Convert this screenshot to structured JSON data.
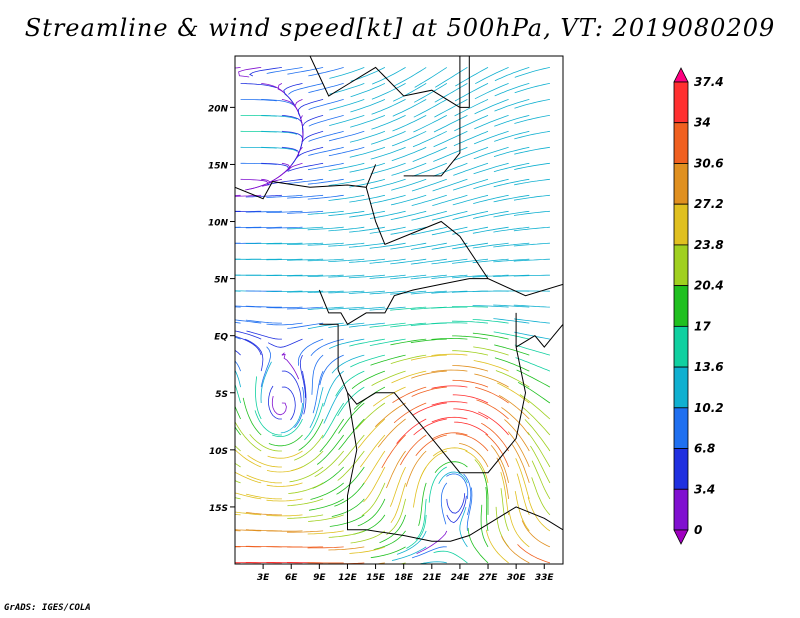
{
  "title": "Streamline & wind speed[kt] at 500hPa, VT: 2019080209",
  "credit": "GrADS: IGES/COLA",
  "map": {
    "lat_labels": [
      "20N",
      "15N",
      "10N",
      "5N",
      "EQ",
      "5S",
      "10S",
      "15S"
    ],
    "lat_values": [
      20,
      15,
      10,
      5,
      0,
      -5,
      -10,
      -15
    ],
    "lon_labels": [
      "3E",
      "6E",
      "9E",
      "12E",
      "15E",
      "18E",
      "21E",
      "24E",
      "27E",
      "30E",
      "33E"
    ],
    "lon_values": [
      3,
      6,
      9,
      12,
      15,
      18,
      21,
      24,
      27,
      30,
      33
    ],
    "lat_range": [
      -20.0,
      24.5
    ],
    "lon_range": [
      0.0,
      35.0
    ]
  },
  "colorbar": {
    "labels": [
      "37.4",
      "34",
      "30.6",
      "27.2",
      "23.8",
      "20.4",
      "17",
      "13.6",
      "10.2",
      "6.8",
      "3.4",
      "0"
    ],
    "colors": [
      "#ff0080",
      "#ff3030",
      "#f06020",
      "#e09020",
      "#e0c020",
      "#a0d020",
      "#20c020",
      "#10d0a0",
      "#10b0d0",
      "#2070f0",
      "#2030e0",
      "#8010d0",
      "#a000c0"
    ]
  }
}
